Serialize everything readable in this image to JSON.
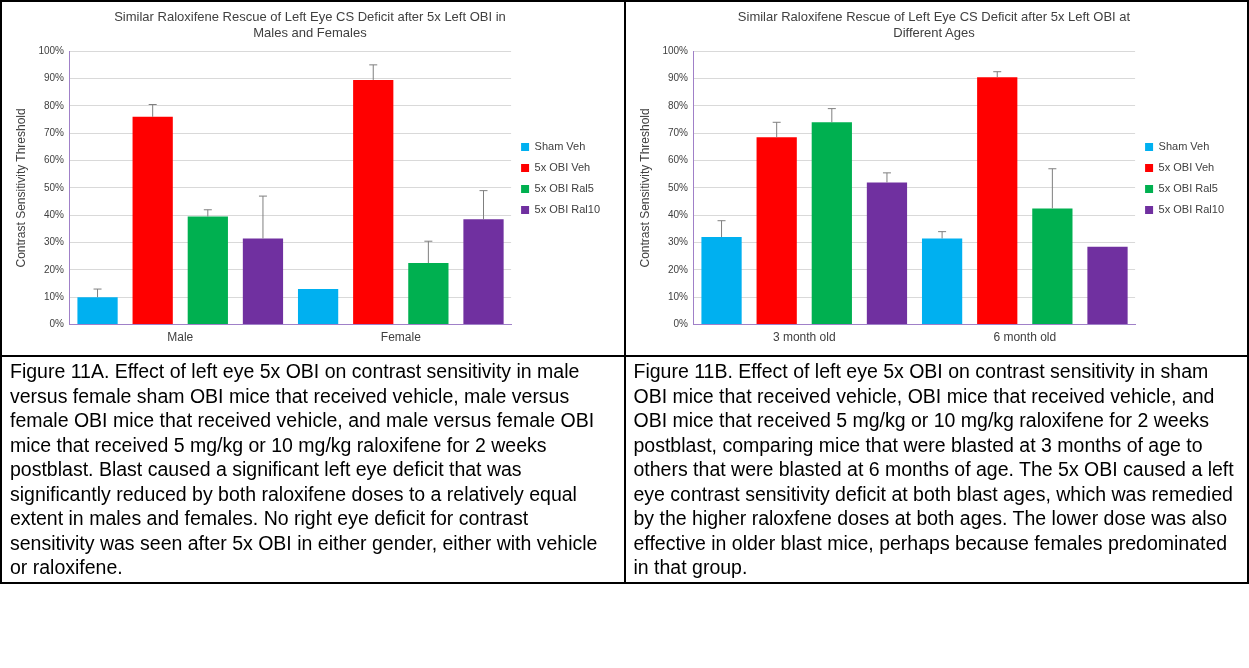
{
  "chart_data": [
    {
      "type": "bar",
      "title": "Similar Raloxifene Rescue of Left Eye CS Deficit after 5x Left OBI in Males and Females",
      "ylabel": "Contrast Sensitivity Threshold",
      "categories": [
        "Male",
        "Female"
      ],
      "series": [
        {
          "name": "Sham Veh",
          "color": "#00b0f0",
          "values": [
            10,
            13
          ],
          "errors": [
            [
              10,
              13
            ],
            [
              13,
              13
            ]
          ]
        },
        {
          "name": "5x OBI Veh",
          "color": "#ff0000",
          "values": [
            76,
            89.5
          ],
          "errors": [
            [
              76,
              80.5
            ],
            [
              89.5,
              95
            ]
          ]
        },
        {
          "name": "5x OBI Ral5",
          "color": "#00b050",
          "values": [
            39.5,
            22.5
          ],
          "errors": [
            [
              39.5,
              42
            ],
            [
              22.5,
              30.5
            ]
          ]
        },
        {
          "name": "5x OBI Ral10",
          "color": "#7030a0",
          "values": [
            31.5,
            38.5
          ],
          "errors": [
            [
              31.5,
              47
            ],
            [
              38.5,
              49
            ]
          ]
        }
      ],
      "ylim": [
        0,
        100
      ],
      "yticks": [
        {
          "value": 0,
          "label": "0%"
        },
        {
          "value": 10,
          "label": "10%"
        },
        {
          "value": 20,
          "label": "20%"
        },
        {
          "value": 30,
          "label": "30%"
        },
        {
          "value": 40,
          "label": "40%"
        },
        {
          "value": 50,
          "label": "50%"
        },
        {
          "value": 60,
          "label": "60%"
        },
        {
          "value": 70,
          "label": "70%"
        },
        {
          "value": 80,
          "label": "80%"
        },
        {
          "value": 90,
          "label": "90%"
        },
        {
          "value": 100,
          "label": "100%"
        }
      ],
      "grid": "y",
      "legend": "right",
      "annotations": [
        "Figure 11A.  Effect of left eye 5x OBI on contrast sensitivity in male versus female sham OBI mice that received vehicle, male versus female OBI mice that received vehicle, and male versus female OBI mice that received 5 mg/kg or 10 mg/kg raloxifene for 2 weeks postblast.  Blast caused a significant left eye deficit that was significantly reduced by both raloxifene doses to a relatively equal extent in males and females.  No right eye deficit for contrast sensitivity was seen after 5x OBI in either gender, either with vehicle or raloxifene."
      ]
    },
    {
      "type": "bar",
      "title": "Similar Raloxifene Rescue of Left Eye CS Deficit after 5x Left OBI at Different Ages",
      "ylabel": "Contrast Sensitivity Threshold",
      "categories": [
        "3 month old",
        "6 month old"
      ],
      "series": [
        {
          "name": "Sham Veh",
          "color": "#00b0f0",
          "values": [
            32,
            31.5
          ],
          "errors": [
            [
              32,
              38
            ],
            [
              31.5,
              34
            ]
          ]
        },
        {
          "name": "5x OBI Veh",
          "color": "#ff0000",
          "values": [
            68.5,
            90.5
          ],
          "errors": [
            [
              68.5,
              74
            ],
            [
              90.5,
              92.5
            ]
          ]
        },
        {
          "name": "5x OBI Ral5",
          "color": "#00b050",
          "values": [
            74,
            42.5
          ],
          "errors": [
            [
              74,
              79
            ],
            [
              42.5,
              57
            ]
          ]
        },
        {
          "name": "5x OBI Ral10",
          "color": "#7030a0",
          "values": [
            52,
            28.5
          ],
          "errors": [
            [
              52,
              55.5
            ],
            [
              28.5,
              28.5
            ]
          ]
        }
      ],
      "ylim": [
        0,
        100
      ],
      "yticks": [
        {
          "value": 0,
          "label": "0%"
        },
        {
          "value": 10,
          "label": "10%"
        },
        {
          "value": 20,
          "label": "20%"
        },
        {
          "value": 30,
          "label": "30%"
        },
        {
          "value": 40,
          "label": "40%"
        },
        {
          "value": 50,
          "label": "50%"
        },
        {
          "value": 60,
          "label": "60%"
        },
        {
          "value": 70,
          "label": "70%"
        },
        {
          "value": 80,
          "label": "80%"
        },
        {
          "value": 90,
          "label": "90%"
        },
        {
          "value": 100,
          "label": "100%"
        }
      ],
      "grid": "y",
      "legend": "right",
      "annotations": [
        "Figure 11B.  Effect of left eye 5x OBI on contrast sensitivity in sham OBI mice that received vehicle, OBI mice that received vehicle, and OBI mice that received 5 mg/kg or 10 mg/kg raloxifene for 2 weeks postblast, comparing mice that were blasted at 3 months of age to others that were blasted at 6 months of age.  The 5x OBI caused a left eye contrast sensitivity deficit at both blast ages, which was remedied by the higher raloxfene doses at both ages.  The lower dose was also effective in older blast mice, perhaps because females predominated in that group."
      ]
    }
  ]
}
